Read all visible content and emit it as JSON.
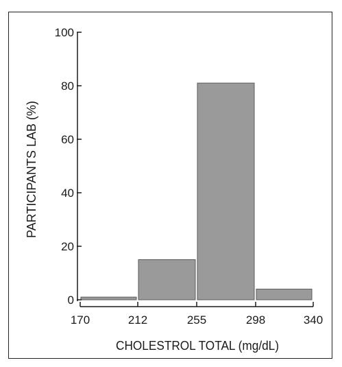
{
  "chart_data": {
    "type": "bar",
    "title": "",
    "xlabel": "CHOLESTROL TOTAL (mg/dL)",
    "ylabel": "PARTICIPANTS LAB (%)",
    "bins": [
      {
        "x0": 170,
        "x1": 212,
        "value": 1
      },
      {
        "x0": 212,
        "x1": 255,
        "value": 15
      },
      {
        "x0": 255,
        "x1": 298,
        "value": 81
      },
      {
        "x0": 298,
        "x1": 340,
        "value": 4
      }
    ],
    "x_ticks": [
      "170",
      "212",
      "255",
      "298",
      "340"
    ],
    "y_ticks": [
      "0",
      "20",
      "40",
      "60",
      "80",
      "100"
    ],
    "xlim": [
      170,
      340
    ],
    "ylim": [
      0,
      100
    ],
    "grid": false,
    "legend": "none",
    "colors": {
      "bar_fill": "#9a9a9a",
      "bar_edge": "#5a5a5a",
      "axis": "#1a1a1a"
    }
  }
}
